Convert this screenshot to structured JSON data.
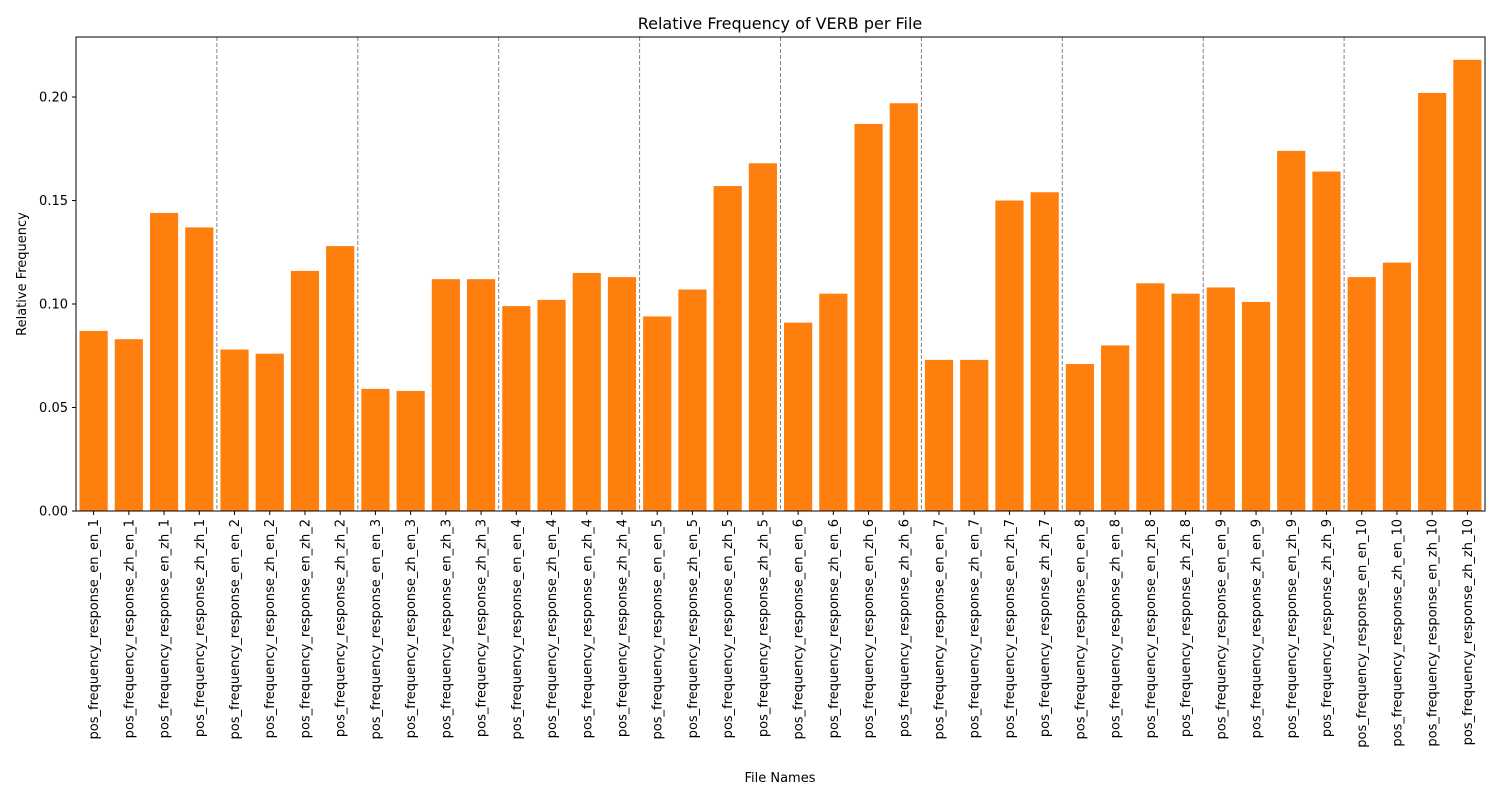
{
  "chart_data": {
    "type": "bar",
    "title": "Relative Frequency of VERB per File",
    "xlabel": "File Names",
    "ylabel": "Relative Frequency",
    "ylim": [
      0,
      0.229
    ],
    "yticks": [
      0.0,
      0.05,
      0.1,
      0.15,
      0.2
    ],
    "ytick_labels": [
      "0.00",
      "0.05",
      "0.10",
      "0.15",
      "0.20"
    ],
    "bar_color": "#ff7f0e",
    "group_separator_color": "#808080",
    "group_size": 4,
    "grid": false,
    "categories": [
      "pos_frequency_response_en_en_1",
      "pos_frequency_response_zh_en_1",
      "pos_frequency_response_en_zh_1",
      "pos_frequency_response_zh_zh_1",
      "pos_frequency_response_en_en_2",
      "pos_frequency_response_zh_en_2",
      "pos_frequency_response_en_zh_2",
      "pos_frequency_response_zh_zh_2",
      "pos_frequency_response_en_en_3",
      "pos_frequency_response_zh_en_3",
      "pos_frequency_response_en_zh_3",
      "pos_frequency_response_zh_zh_3",
      "pos_frequency_response_en_en_4",
      "pos_frequency_response_zh_en_4",
      "pos_frequency_response_en_zh_4",
      "pos_frequency_response_zh_zh_4",
      "pos_frequency_response_en_en_5",
      "pos_frequency_response_zh_en_5",
      "pos_frequency_response_en_zh_5",
      "pos_frequency_response_zh_zh_5",
      "pos_frequency_response_en_en_6",
      "pos_frequency_response_zh_en_6",
      "pos_frequency_response_en_zh_6",
      "pos_frequency_response_zh_zh_6",
      "pos_frequency_response_en_en_7",
      "pos_frequency_response_zh_en_7",
      "pos_frequency_response_en_zh_7",
      "pos_frequency_response_zh_zh_7",
      "pos_frequency_response_en_en_8",
      "pos_frequency_response_zh_en_8",
      "pos_frequency_response_en_zh_8",
      "pos_frequency_response_zh_zh_8",
      "pos_frequency_response_en_en_9",
      "pos_frequency_response_zh_en_9",
      "pos_frequency_response_en_zh_9",
      "pos_frequency_response_zh_zh_9",
      "pos_frequency_response_en_en_10",
      "pos_frequency_response_zh_en_10",
      "pos_frequency_response_en_zh_10",
      "pos_frequency_response_zh_zh_10"
    ],
    "values": [
      0.087,
      0.083,
      0.144,
      0.137,
      0.078,
      0.076,
      0.116,
      0.128,
      0.059,
      0.058,
      0.112,
      0.112,
      0.099,
      0.102,
      0.115,
      0.113,
      0.094,
      0.107,
      0.157,
      0.168,
      0.091,
      0.105,
      0.187,
      0.197,
      0.073,
      0.073,
      0.15,
      0.154,
      0.071,
      0.08,
      0.11,
      0.105,
      0.108,
      0.101,
      0.174,
      0.164,
      0.113,
      0.12,
      0.202,
      0.218
    ]
  }
}
